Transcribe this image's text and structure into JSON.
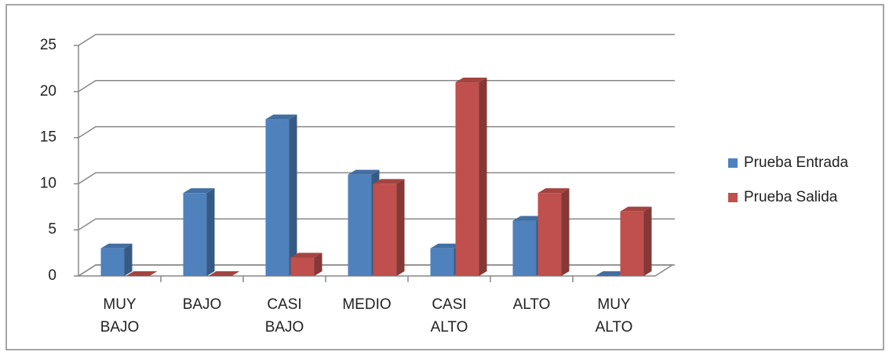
{
  "chart_data": {
    "type": "bar3d",
    "categories": [
      "MUY BAJO",
      "BAJO",
      "CASI BAJO",
      "MEDIO",
      "CASI ALTO",
      "ALTO",
      "MUY ALTO"
    ],
    "series": [
      {
        "name": "Prueba Entrada",
        "color": "#4f81bd",
        "values": [
          3,
          9,
          17,
          11,
          3,
          6,
          0
        ]
      },
      {
        "name": "Prueba Salida",
        "color": "#c0504d",
        "values": [
          0,
          0,
          2,
          10,
          21,
          9,
          7
        ]
      }
    ],
    "ylim": [
      0,
      25
    ],
    "yticks": [
      0,
      5,
      10,
      15,
      20,
      25
    ],
    "grid": true,
    "legend": "right"
  }
}
